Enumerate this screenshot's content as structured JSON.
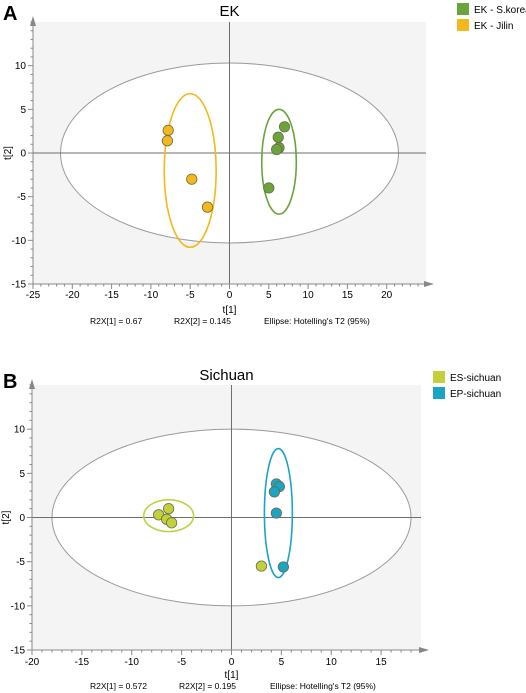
{
  "chart_data": [
    {
      "type": "scatter",
      "panel_label": "A",
      "title": "EK",
      "xlabel": "t[1]",
      "ylabel": "t[2]",
      "xlim": [
        -25,
        25
      ],
      "ylim": [
        -15,
        15
      ],
      "xticks": [
        -25,
        -20,
        -15,
        -10,
        -5,
        0,
        5,
        10,
        15,
        20
      ],
      "yticks": [
        -15,
        -10,
        -5,
        0,
        5,
        10
      ],
      "grid": false,
      "background": "#f4f4f4",
      "legend_position": "top-right",
      "stats": {
        "r2x1": "R2X[1] = 0.67",
        "r2x2": "R2X[2] = 0.145",
        "ellipse": "Ellipse: Hotelling's T2 (95%)"
      },
      "hotelling_ellipse": {
        "cx": 0,
        "cy": 0,
        "rx": 21.5,
        "ry": 10.3
      },
      "series": [
        {
          "name": "EK - S.korea",
          "color": "#6aa43a",
          "points": [
            [
              7.0,
              3.0
            ],
            [
              6.2,
              1.8
            ],
            [
              6.3,
              0.6
            ],
            [
              6.0,
              0.4
            ],
            [
              5.0,
              -4.0
            ]
          ],
          "ellipse": {
            "cx": 6.3,
            "cy": -1.0,
            "rx": 2.2,
            "ry": 6.0
          }
        },
        {
          "name": "EK - Jilin",
          "color": "#f2b81c",
          "points": [
            [
              -7.8,
              2.6
            ],
            [
              -7.9,
              1.4
            ],
            [
              -4.8,
              -3.0
            ],
            [
              -2.8,
              -6.2
            ]
          ],
          "ellipse": {
            "cx": -5.0,
            "cy": -2.0,
            "rx": 3.3,
            "ry": 8.8
          }
        }
      ]
    },
    {
      "type": "scatter",
      "panel_label": "B",
      "title": "Sichuan",
      "xlabel": "t[1]",
      "ylabel": "t[2]",
      "xlim": [
        -20,
        19
      ],
      "ylim": [
        -15,
        15
      ],
      "xticks": [
        -20,
        -15,
        -10,
        -5,
        0,
        5,
        10,
        15
      ],
      "yticks": [
        -15,
        -10,
        -5,
        0,
        5,
        10
      ],
      "grid": false,
      "background": "#f4f4f4",
      "legend_position": "top-right",
      "stats": {
        "r2x1": "R2X[1] = 0.572",
        "r2x2": "R2X[2] = 0.195",
        "ellipse": "Ellipse: Hotelling's T2 (95%)"
      },
      "hotelling_ellipse": {
        "cx": 0,
        "cy": 0,
        "rx": 18.0,
        "ry": 10.0
      },
      "series": [
        {
          "name": "ES-sichuan",
          "color": "#c2d03c",
          "points": [
            [
              -6.3,
              1.0
            ],
            [
              -7.3,
              0.3
            ],
            [
              -6.5,
              -0.2
            ],
            [
              -6.0,
              -0.6
            ],
            [
              3.0,
              -5.5
            ]
          ],
          "ellipse": {
            "cx": -6.3,
            "cy": 0.2,
            "rx": 2.5,
            "ry": 1.8
          }
        },
        {
          "name": "EP-sichuan",
          "color": "#1ba5c2",
          "points": [
            [
              4.5,
              3.8
            ],
            [
              4.8,
              3.5
            ],
            [
              4.3,
              2.9
            ],
            [
              4.5,
              0.5
            ],
            [
              5.2,
              -5.6
            ]
          ],
          "ellipse": {
            "cx": 4.7,
            "cy": 0.5,
            "rx": 1.4,
            "ry": 7.3
          }
        }
      ]
    }
  ]
}
